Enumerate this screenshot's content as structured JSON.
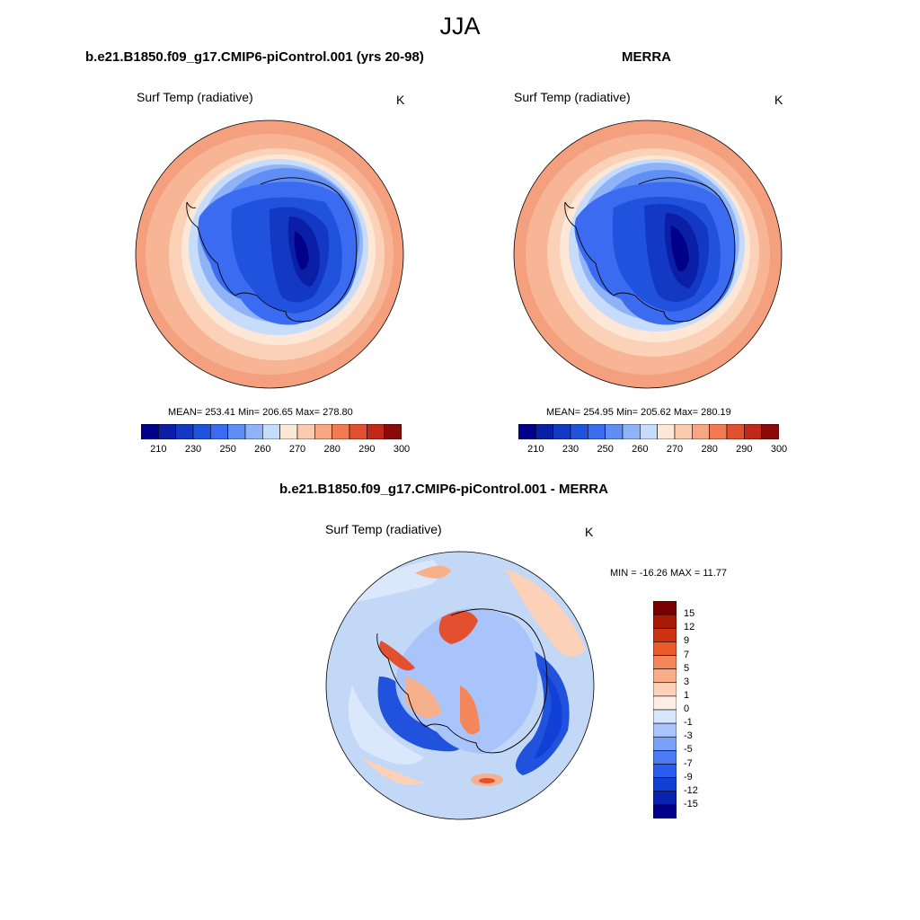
{
  "season": "JJA",
  "units": "K",
  "panels": [
    {
      "title": "b.e21.B1850.f09_g17.CMIP6-piControl.001 (yrs 20-98)",
      "variable": "Surf Temp (radiative)",
      "units": "K",
      "stats": "MEAN= 253.41  Min= 206.65  Max= 278.80"
    },
    {
      "title": "MERRA",
      "variable": "Surf Temp (radiative)",
      "units": "K",
      "stats": "MEAN= 254.95  Min= 205.62  Max= 280.19"
    },
    {
      "title": "b.e21.B1850.f09_g17.CMIP6-piControl.001 - MERRA",
      "variable": "Surf Temp (radiative)",
      "units": "K",
      "stats": "MIN = -16.26 MAX =  11.77"
    }
  ],
  "colorbar_abs": {
    "colors": [
      "#00008a",
      "#0a1ea6",
      "#1238c4",
      "#2152dd",
      "#3b6bf0",
      "#5f8ef5",
      "#8fb3f8",
      "#c6dcfb",
      "#fde7d6",
      "#fbcbb0",
      "#f7a583",
      "#f37a53",
      "#e2502f",
      "#c0281a",
      "#8a0a0a"
    ],
    "labels": [
      "210",
      "230",
      "250",
      "260",
      "270",
      "280",
      "290",
      "300"
    ]
  },
  "colorbar_diff": {
    "colors": [
      "#00008a",
      "#0a22b0",
      "#1240d6",
      "#2a5cf0",
      "#4b7bf5",
      "#7aa0f8",
      "#a9c4fa",
      "#d6e6fc",
      "#fdeee4",
      "#fbd2b8",
      "#f8ad88",
      "#f5855a",
      "#ec5a2c",
      "#cc3210",
      "#a81a05",
      "#7a0000"
    ],
    "labels": [
      "15",
      "12",
      "9",
      "7",
      "5",
      "3",
      "1",
      "0",
      "-1",
      "-3",
      "-5",
      "-7",
      "-9",
      "-12",
      "-15"
    ]
  },
  "map_palette": {
    "ocean_warm": "#f4a07e",
    "ocean_mid": "#f9c4a4",
    "ice_light": "#c7dcfb",
    "ice_mid": "#8fb3f8",
    "land_blue": "#3b6bf0",
    "land_dark": "#1238c4",
    "interior": "#00008a",
    "diff_bg": "#c3d7f7",
    "diff_light": "#dbe8fb",
    "diff_warm": "#f7b08c",
    "diff_hot": "#e2502f",
    "diff_cold": "#2152dd"
  }
}
